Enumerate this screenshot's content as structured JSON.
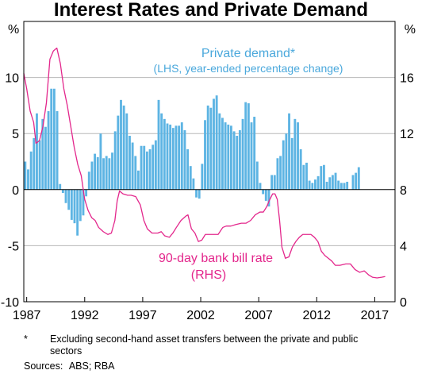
{
  "title": "Interest Rates and Private Demand",
  "chart_data": {
    "type": "bar+line",
    "title": "Interest Rates and Private Demand",
    "left_axis": {
      "unit": "%",
      "ylim": [
        -10,
        15
      ],
      "ticks": [
        -10,
        -5,
        0,
        5,
        10
      ]
    },
    "right_axis": {
      "unit": "%",
      "ylim": [
        0,
        20
      ],
      "ticks": [
        0,
        4,
        8,
        12,
        16
      ]
    },
    "x_axis": {
      "xlim": [
        1986.75,
        2018.75
      ],
      "ticks": [
        1987,
        1992,
        1997,
        2002,
        2007,
        2012,
        2017
      ],
      "tick_labels": [
        "1987",
        "1992",
        "1997",
        "2002",
        "2007",
        "2012",
        "2017"
      ]
    },
    "series": [
      {
        "name": "Private demand*",
        "label_line1": "Private demand*",
        "label_line2": "(LHS, year-ended percentage change)",
        "kind": "bar",
        "axis": "left",
        "color": "#5db4e3",
        "start": 1986.75,
        "step": 0.25,
        "values": [
          2.5,
          1.8,
          3.4,
          4.6,
          6.8,
          4.4,
          6.3,
          5.6,
          7.0,
          9.0,
          9.0,
          7.0,
          0.5,
          -0.3,
          -1.2,
          -1.8,
          -2.7,
          -3.0,
          -4.1,
          -2.8,
          -2.3,
          -0.6,
          1.6,
          2.5,
          3.2,
          2.9,
          5.0,
          2.8,
          3.0,
          2.8,
          3.3,
          5.2,
          6.6,
          8.0,
          7.5,
          6.8,
          4.8,
          4.2,
          3.0,
          1.7,
          3.9,
          3.9,
          3.4,
          3.6,
          4.0,
          4.4,
          8.0,
          6.8,
          6.3,
          5.9,
          5.8,
          5.5,
          5.7,
          5.7,
          6.0,
          5.3,
          3.6,
          2.1,
          1.0,
          -0.7,
          -0.8,
          2.3,
          6.2,
          7.5,
          7.3,
          8.1,
          8.4,
          6.8,
          6.4,
          6.0,
          5.8,
          5.7,
          5.2,
          4.8,
          5.3,
          6.3,
          7.8,
          7.7,
          6.0,
          6.5,
          2.5,
          0.6,
          -0.4,
          -1.0,
          -1.5,
          1.3,
          1.3,
          2.8,
          3.0,
          4.4,
          5.0,
          6.8,
          4.6,
          6.3,
          6.0,
          3.6,
          2.2,
          2.4,
          0.8,
          0.6,
          0.9,
          1.2,
          2.1,
          2.2,
          0.7,
          1.1,
          1.3,
          1.5,
          0.8,
          0.6,
          0.6,
          0.7,
          0.0,
          1.3,
          1.5,
          2.0
        ]
      },
      {
        "name": "90-day bank bill rate",
        "label_line1": "90-day bank bill rate",
        "label_line2": "(RHS)",
        "kind": "line",
        "axis": "right",
        "color": "#e3278c",
        "points": [
          [
            1986.75,
            16.3
          ],
          [
            1987.0,
            15.2
          ],
          [
            1987.3,
            13.6
          ],
          [
            1987.6,
            12.8
          ],
          [
            1987.8,
            11.3
          ],
          [
            1988.1,
            11.5
          ],
          [
            1988.4,
            12.5
          ],
          [
            1988.7,
            14.2
          ],
          [
            1989.0,
            17.3
          ],
          [
            1989.3,
            17.9
          ],
          [
            1989.6,
            18.1
          ],
          [
            1989.9,
            17.0
          ],
          [
            1990.2,
            15.2
          ],
          [
            1990.5,
            14.0
          ],
          [
            1990.8,
            12.5
          ],
          [
            1991.1,
            11.0
          ],
          [
            1991.4,
            9.8
          ],
          [
            1991.7,
            9.0
          ],
          [
            1992.0,
            7.3
          ],
          [
            1992.3,
            6.5
          ],
          [
            1992.6,
            6.0
          ],
          [
            1992.9,
            5.8
          ],
          [
            1993.2,
            5.3
          ],
          [
            1993.6,
            5.0
          ],
          [
            1994.0,
            4.8
          ],
          [
            1994.3,
            4.9
          ],
          [
            1994.6,
            5.8
          ],
          [
            1994.8,
            7.2
          ],
          [
            1995.0,
            7.9
          ],
          [
            1995.3,
            7.7
          ],
          [
            1995.7,
            7.6
          ],
          [
            1996.0,
            7.6
          ],
          [
            1996.4,
            7.5
          ],
          [
            1996.8,
            6.9
          ],
          [
            1997.1,
            5.8
          ],
          [
            1997.4,
            5.2
          ],
          [
            1997.8,
            4.9
          ],
          [
            1998.3,
            4.9
          ],
          [
            1998.6,
            5.0
          ],
          [
            1998.9,
            4.7
          ],
          [
            1999.3,
            4.6
          ],
          [
            1999.6,
            4.9
          ],
          [
            1999.9,
            5.3
          ],
          [
            2000.3,
            5.8
          ],
          [
            2000.7,
            6.1
          ],
          [
            2000.9,
            6.2
          ],
          [
            2001.2,
            5.2
          ],
          [
            2001.5,
            4.9
          ],
          [
            2001.8,
            4.3
          ],
          [
            2002.1,
            4.4
          ],
          [
            2002.4,
            4.8
          ],
          [
            2002.8,
            4.8
          ],
          [
            2003.2,
            4.8
          ],
          [
            2003.5,
            4.8
          ],
          [
            2003.9,
            5.3
          ],
          [
            2004.2,
            5.4
          ],
          [
            2004.6,
            5.4
          ],
          [
            2005.0,
            5.5
          ],
          [
            2005.5,
            5.6
          ],
          [
            2005.9,
            5.6
          ],
          [
            2006.3,
            5.8
          ],
          [
            2006.7,
            6.2
          ],
          [
            2007.1,
            6.4
          ],
          [
            2007.4,
            6.4
          ],
          [
            2007.7,
            6.8
          ],
          [
            2007.9,
            7.2
          ],
          [
            2008.2,
            7.7
          ],
          [
            2008.4,
            7.7
          ],
          [
            2008.6,
            7.3
          ],
          [
            2008.8,
            5.8
          ],
          [
            2009.0,
            3.9
          ],
          [
            2009.3,
            3.1
          ],
          [
            2009.6,
            3.2
          ],
          [
            2009.9,
            3.9
          ],
          [
            2010.2,
            4.3
          ],
          [
            2010.5,
            4.6
          ],
          [
            2010.8,
            4.8
          ],
          [
            2011.2,
            4.8
          ],
          [
            2011.5,
            4.8
          ],
          [
            2011.8,
            4.6
          ],
          [
            2012.1,
            4.3
          ],
          [
            2012.4,
            3.6
          ],
          [
            2012.7,
            3.3
          ],
          [
            2013.0,
            3.1
          ],
          [
            2013.3,
            2.9
          ],
          [
            2013.6,
            2.6
          ],
          [
            2014.0,
            2.6
          ],
          [
            2014.5,
            2.7
          ],
          [
            2014.9,
            2.7
          ],
          [
            2015.3,
            2.3
          ],
          [
            2015.7,
            2.1
          ],
          [
            2016.1,
            2.2
          ],
          [
            2016.5,
            1.9
          ],
          [
            2016.8,
            1.75
          ],
          [
            2017.2,
            1.7
          ],
          [
            2017.6,
            1.75
          ],
          [
            2017.9,
            1.8
          ]
        ]
      }
    ],
    "legend": "inline labels",
    "grid": true
  },
  "footnote": {
    "marker": "*",
    "text": "Excluding second-hand asset transfers between the private and public sectors"
  },
  "sources": {
    "label": "Sources:",
    "text": "ABS; RBA"
  },
  "colors": {
    "bars": "#5db4e3",
    "line": "#e3278c",
    "grid": "#b8b8b8",
    "frame": "#000000"
  }
}
